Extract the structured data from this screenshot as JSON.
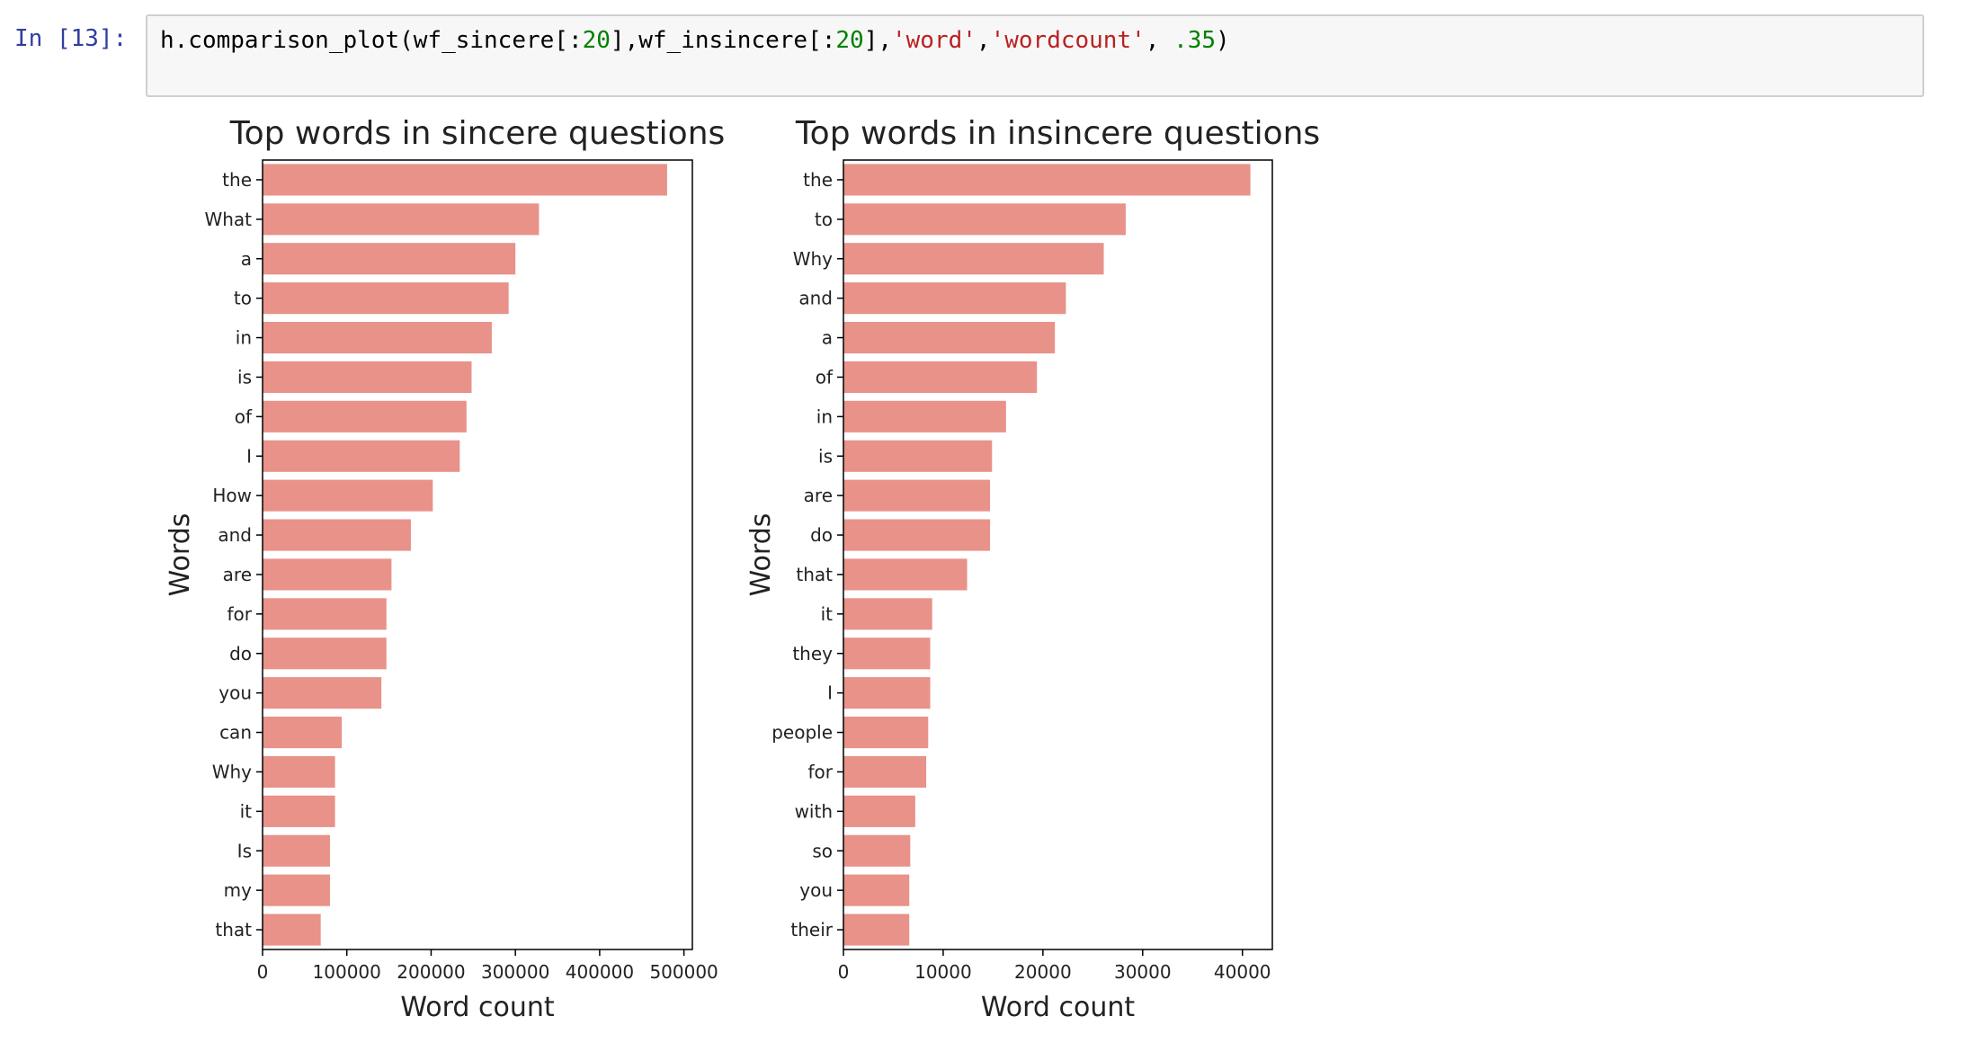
{
  "cell": {
    "prompt": "In [13]:",
    "code_tokens": [
      {
        "t": "h.comparison_plot(wf_sincere[:",
        "k": "punc"
      },
      {
        "t": "20",
        "k": "num"
      },
      {
        "t": "],wf_insincere[:",
        "k": "punc"
      },
      {
        "t": "20",
        "k": "num"
      },
      {
        "t": "],",
        "k": "punc"
      },
      {
        "t": "'word'",
        "k": "str"
      },
      {
        "t": ",",
        "k": "punc"
      },
      {
        "t": "'wordcount'",
        "k": "str"
      },
      {
        "t": ", ",
        "k": "punc"
      },
      {
        "t": ".35",
        "k": "num"
      },
      {
        "t": ")",
        "k": "punc"
      }
    ]
  },
  "colors": {
    "bar": "#e8928a",
    "axis": "#000000",
    "text": "#222222"
  },
  "chart_data": [
    {
      "type": "bar",
      "orientation": "horizontal",
      "title": "Top words in sincere questions",
      "xlabel": "Word count",
      "ylabel": "Words",
      "xlim": [
        0,
        510000
      ],
      "xticks": [
        0,
        100000,
        200000,
        300000,
        400000,
        500000
      ],
      "categories": [
        "the",
        "What",
        "a",
        "to",
        "in",
        "is",
        "of",
        "I",
        "How",
        "and",
        "are",
        "for",
        "do",
        "you",
        "can",
        "Why",
        "it",
        "Is",
        "my",
        "that"
      ],
      "values": [
        480000,
        328000,
        300000,
        292000,
        272000,
        248000,
        242000,
        234000,
        202000,
        176000,
        153000,
        147000,
        147000,
        141000,
        94000,
        86000,
        86000,
        80000,
        80000,
        69000
      ]
    },
    {
      "type": "bar",
      "orientation": "horizontal",
      "title": "Top words in insincere questions",
      "xlabel": "Word count",
      "ylabel": "Words",
      "xlim": [
        0,
        43000
      ],
      "xticks": [
        0,
        10000,
        20000,
        30000,
        40000
      ],
      "categories": [
        "the",
        "to",
        "Why",
        "and",
        "a",
        "of",
        "in",
        "is",
        "are",
        "do",
        "that",
        "it",
        "they",
        "I",
        "people",
        "for",
        "with",
        "so",
        "you",
        "their"
      ],
      "values": [
        40800,
        28300,
        26100,
        22300,
        21200,
        19400,
        16300,
        14900,
        14700,
        14700,
        12400,
        8900,
        8700,
        8700,
        8500,
        8300,
        7200,
        6700,
        6600,
        6600
      ]
    }
  ]
}
